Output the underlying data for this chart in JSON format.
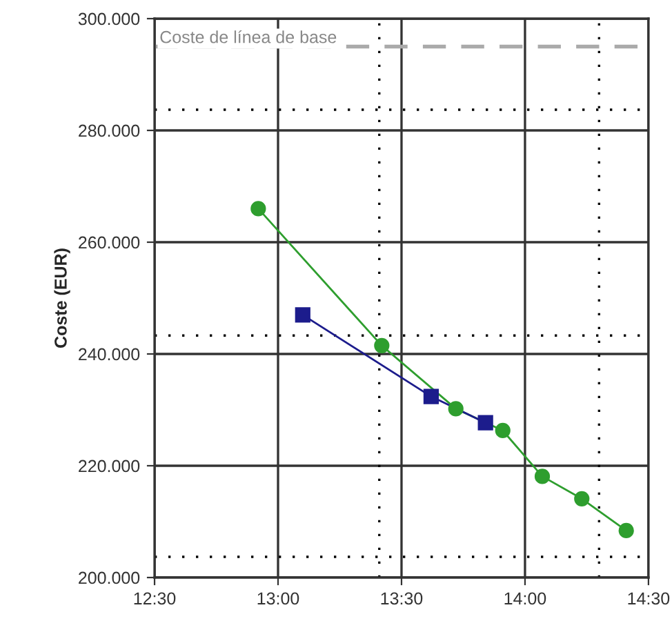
{
  "chart_data": {
    "type": "line",
    "ylabel": "Coste (EUR)",
    "xlim": [
      12.5,
      14.5
    ],
    "xticks": [
      {
        "value": 12.5,
        "label": "12:30"
      },
      {
        "value": 13.0,
        "label": "13:00"
      },
      {
        "value": 13.5,
        "label": "13:30"
      },
      {
        "value": 14.0,
        "label": "14:00"
      },
      {
        "value": 14.5,
        "label": "14:30"
      }
    ],
    "ylim": [
      200000,
      300000
    ],
    "yticks": [
      {
        "value": 200000,
        "label": "200.000"
      },
      {
        "value": 220000,
        "label": "220.000"
      },
      {
        "value": 240000,
        "label": "240.000"
      },
      {
        "value": 260000,
        "label": "260.000"
      },
      {
        "value": 280000,
        "label": "280.000"
      },
      {
        "value": 300000,
        "label": "300.000"
      }
    ],
    "grid": true,
    "series": [
      {
        "color": "#2e9e2e",
        "marker": "circle",
        "x": [
          12.92,
          13.42,
          13.72,
          13.91,
          14.07,
          14.23,
          14.41
        ],
        "values": [
          266000,
          241500,
          230200,
          226300,
          218100,
          214100,
          208400
        ]
      },
      {
        "color": "#1c1c8c",
        "marker": "square",
        "x": [
          13.1,
          13.62,
          13.84
        ],
        "values": [
          247000,
          232400,
          227700
        ]
      }
    ],
    "ref_lines": [
      {
        "axis": "y",
        "value": 295000,
        "label": "Coste de línea de base",
        "color": "#aaaaaa",
        "line_style": "dashed"
      },
      {
        "axis": "y",
        "value": 283700,
        "color": "#000000",
        "line_style": "dotted"
      },
      {
        "axis": "y",
        "value": 243300,
        "color": "#000000",
        "line_style": "dotted"
      },
      {
        "axis": "y",
        "value": 203700,
        "color": "#000000",
        "line_style": "dotted"
      },
      {
        "axis": "x",
        "value": 13.41,
        "color": "#000000",
        "line_style": "dotted"
      },
      {
        "axis": "x",
        "value": 14.3,
        "color": "#000000",
        "line_style": "dotted"
      }
    ]
  }
}
